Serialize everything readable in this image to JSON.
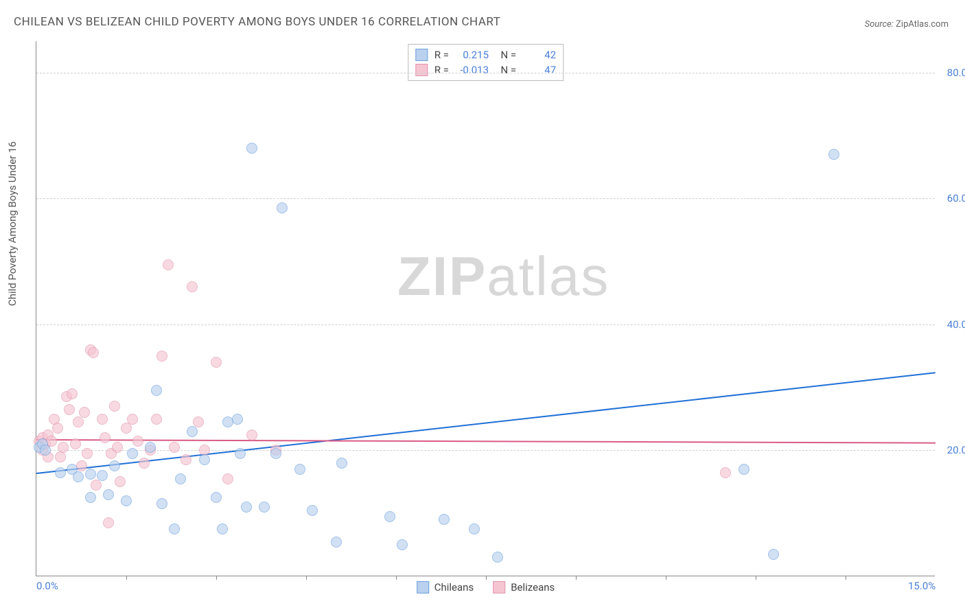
{
  "title": "CHILEAN VS BELIZEAN CHILD POVERTY AMONG BOYS UNDER 16 CORRELATION CHART",
  "source_label": "Source:",
  "source_value": "ZipAtlas.com",
  "y_axis_label": "Child Poverty Among Boys Under 16",
  "watermark_bold": "ZIP",
  "watermark_rest": "atlas",
  "chart": {
    "type": "scatter",
    "xlim": [
      0,
      15
    ],
    "ylim": [
      0,
      85
    ],
    "x_ticks_labeled": [
      {
        "v": 0.0,
        "label": "0.0%"
      },
      {
        "v": 15.0,
        "label": "15.0%"
      }
    ],
    "x_tick_marks": [
      1.5,
      3.0,
      4.5,
      6.0,
      7.5,
      9.0,
      10.5,
      12.0,
      13.5
    ],
    "y_ticks": [
      {
        "v": 20,
        "label": "20.0%"
      },
      {
        "v": 40,
        "label": "40.0%"
      },
      {
        "v": 60,
        "label": "60.0%"
      },
      {
        "v": 80,
        "label": "80.0%"
      }
    ],
    "grid_color": "#d0d0d0",
    "background_color": "#ffffff",
    "point_radius": 8,
    "point_stroke_width": 1,
    "series": [
      {
        "name": "Chileans",
        "fill": "#b9d1ee",
        "stroke": "#6ea0de",
        "fill_opacity": 0.65,
        "R": "0.215",
        "N": "42",
        "regression": {
          "x0": 0,
          "y0": 16.5,
          "x1": 15,
          "y1": 32.5,
          "color": "#1f6fd6",
          "width": 2
        },
        "points": [
          [
            0.05,
            20.5
          ],
          [
            0.1,
            21.0
          ],
          [
            0.15,
            20.0
          ],
          [
            0.4,
            16.5
          ],
          [
            0.6,
            17.0
          ],
          [
            0.7,
            15.8
          ],
          [
            0.9,
            16.2
          ],
          [
            1.1,
            16.0
          ],
          [
            0.9,
            12.5
          ],
          [
            1.2,
            13.0
          ],
          [
            1.5,
            12.0
          ],
          [
            1.3,
            17.5
          ],
          [
            1.6,
            19.5
          ],
          [
            1.9,
            20.5
          ],
          [
            2.0,
            29.5
          ],
          [
            2.1,
            11.5
          ],
          [
            2.3,
            7.5
          ],
          [
            2.4,
            15.5
          ],
          [
            2.6,
            23.0
          ],
          [
            2.8,
            18.5
          ],
          [
            3.0,
            12.5
          ],
          [
            3.1,
            7.5
          ],
          [
            3.2,
            24.5
          ],
          [
            3.35,
            25.0
          ],
          [
            3.4,
            19.5
          ],
          [
            3.5,
            11.0
          ],
          [
            3.6,
            68.0
          ],
          [
            3.8,
            11.0
          ],
          [
            4.0,
            19.5
          ],
          [
            4.1,
            58.5
          ],
          [
            4.4,
            17.0
          ],
          [
            4.6,
            10.5
          ],
          [
            5.0,
            5.5
          ],
          [
            5.1,
            18.0
          ],
          [
            5.9,
            9.5
          ],
          [
            6.1,
            5.0
          ],
          [
            6.8,
            9.0
          ],
          [
            7.3,
            7.5
          ],
          [
            7.7,
            3.0
          ],
          [
            12.3,
            3.5
          ],
          [
            11.8,
            17.0
          ],
          [
            13.3,
            67.0
          ]
        ]
      },
      {
        "name": "Belizeans",
        "fill": "#f5c5d2",
        "stroke": "#e295ad",
        "fill_opacity": 0.65,
        "R": "-0.013",
        "N": "47",
        "regression": {
          "x0": 0,
          "y0": 21.8,
          "x1": 15,
          "y1": 21.3,
          "color": "#d95b84",
          "width": 2
        },
        "points": [
          [
            0.05,
            21.5
          ],
          [
            0.1,
            22.0
          ],
          [
            0.1,
            20.0
          ],
          [
            0.15,
            21.0
          ],
          [
            0.2,
            19.0
          ],
          [
            0.2,
            22.5
          ],
          [
            0.25,
            21.5
          ],
          [
            0.3,
            25.0
          ],
          [
            0.35,
            23.5
          ],
          [
            0.4,
            19.0
          ],
          [
            0.45,
            20.5
          ],
          [
            0.5,
            28.5
          ],
          [
            0.55,
            26.5
          ],
          [
            0.6,
            29.0
          ],
          [
            0.65,
            21.0
          ],
          [
            0.7,
            24.5
          ],
          [
            0.75,
            17.5
          ],
          [
            0.8,
            26.0
          ],
          [
            0.85,
            19.5
          ],
          [
            0.9,
            36.0
          ],
          [
            0.95,
            35.5
          ],
          [
            1.0,
            14.5
          ],
          [
            1.1,
            25.0
          ],
          [
            1.15,
            22.0
          ],
          [
            1.2,
            8.5
          ],
          [
            1.25,
            19.5
          ],
          [
            1.3,
            27.0
          ],
          [
            1.35,
            20.5
          ],
          [
            1.4,
            15.0
          ],
          [
            1.5,
            23.5
          ],
          [
            1.6,
            25.0
          ],
          [
            1.7,
            21.5
          ],
          [
            1.8,
            18.0
          ],
          [
            1.9,
            20.0
          ],
          [
            2.0,
            25.0
          ],
          [
            2.1,
            35.0
          ],
          [
            2.2,
            49.5
          ],
          [
            2.3,
            20.5
          ],
          [
            2.5,
            18.5
          ],
          [
            2.6,
            46.0
          ],
          [
            2.7,
            24.5
          ],
          [
            2.8,
            20.0
          ],
          [
            3.0,
            34.0
          ],
          [
            3.2,
            15.5
          ],
          [
            3.6,
            22.5
          ],
          [
            4.0,
            20.0
          ],
          [
            11.5,
            16.5
          ]
        ]
      }
    ]
  },
  "bottom_legend": [
    {
      "swatch_fill": "#b9d1ee",
      "swatch_stroke": "#6ea0de",
      "label": "Chileans"
    },
    {
      "swatch_fill": "#f5c5d2",
      "swatch_stroke": "#e295ad",
      "label": "Belizeans"
    }
  ]
}
